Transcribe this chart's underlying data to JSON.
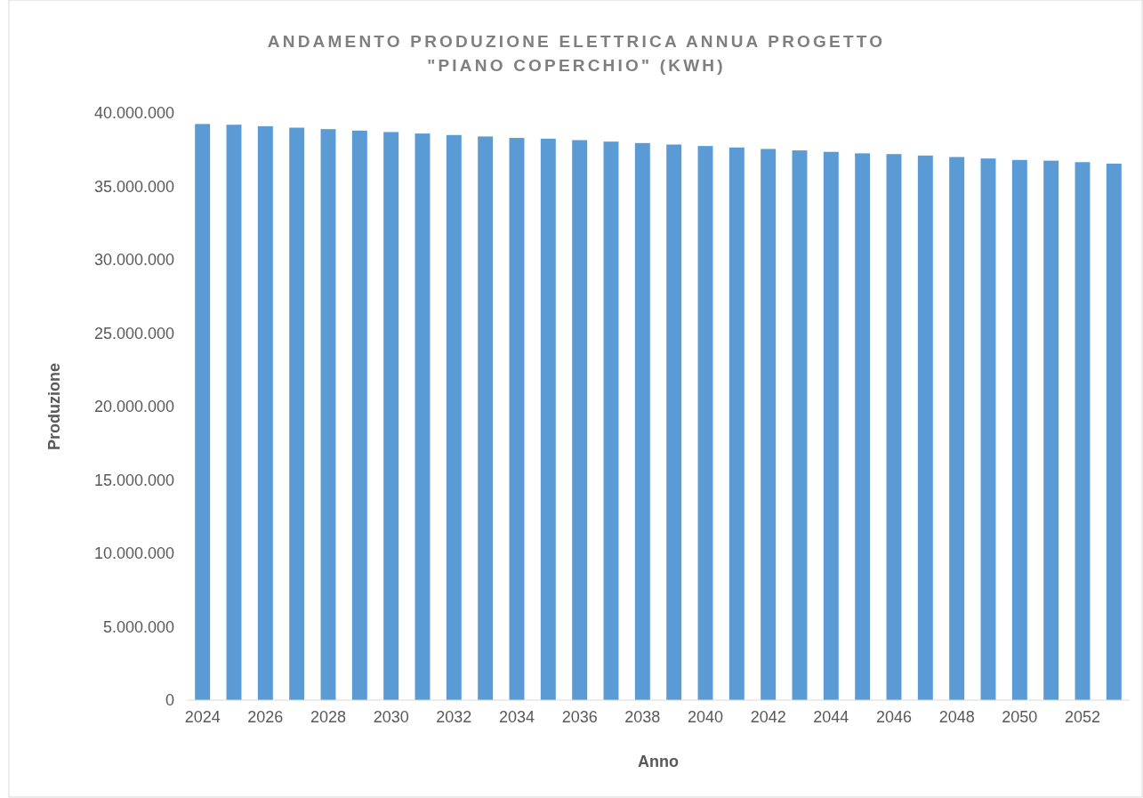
{
  "chart_data": {
    "type": "bar",
    "title": "ANDAMENTO PRODUZIONE ELETTRICA ANNUA PROGETTO \"PIANO COPERCHIO\" (KWH)",
    "xlabel": "Anno",
    "ylabel": "Produzione",
    "categories": [
      "2024",
      null,
      "2026",
      null,
      "2028",
      null,
      "2030",
      null,
      "2032",
      null,
      "2034",
      null,
      "2036",
      null,
      "2038",
      null,
      "2040",
      null,
      "2042",
      null,
      "2044",
      null,
      "2046",
      null,
      "2048",
      null,
      "2050",
      null,
      "2052",
      null
    ],
    "values": [
      39250000,
      39200000,
      39100000,
      39000000,
      38900000,
      38800000,
      38700000,
      38600000,
      38500000,
      38400000,
      38300000,
      38250000,
      38150000,
      38050000,
      37950000,
      37850000,
      37750000,
      37650000,
      37550000,
      37450000,
      37350000,
      37250000,
      37200000,
      37100000,
      37000000,
      36900000,
      36800000,
      36750000,
      36650000,
      36550000
    ],
    "color": "#5b9bd5",
    "ylim": [
      0,
      40000000
    ],
    "yticks": [
      {
        "value": 0,
        "label": "0"
      },
      {
        "value": 5000000,
        "label": "5.000.000"
      },
      {
        "value": 10000000,
        "label": "10.000.000"
      },
      {
        "value": 15000000,
        "label": "15.000.000"
      },
      {
        "value": 20000000,
        "label": "20.000.000"
      },
      {
        "value": 25000000,
        "label": "25.000.000"
      },
      {
        "value": 30000000,
        "label": "30.000.000"
      },
      {
        "value": 35000000,
        "label": "35.000.000"
      },
      {
        "value": 40000000,
        "label": "40.000.000"
      }
    ],
    "grid": false
  }
}
